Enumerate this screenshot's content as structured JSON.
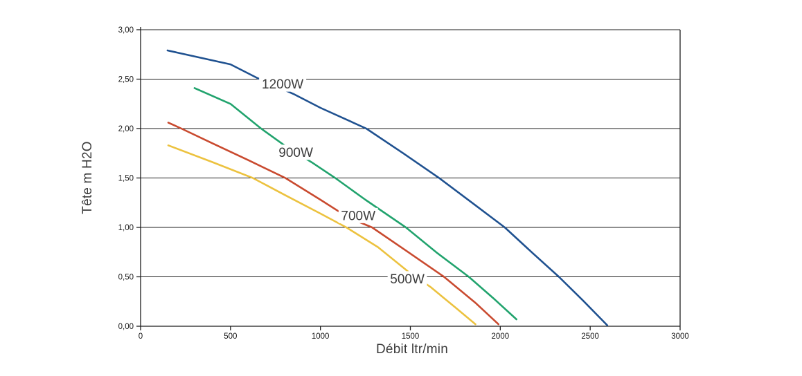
{
  "chart_data": {
    "type": "line",
    "title": "",
    "xlabel": "Débit ltr/min",
    "ylabel": "Tête m H2O",
    "xlim": [
      0,
      3000
    ],
    "ylim": [
      0,
      3
    ],
    "grid": "horizontal",
    "legend_position": "inline-labels",
    "axis_color": "#1c1c1c",
    "label_color": "#3c3c3c",
    "x_ticks": [
      {
        "value": 0,
        "label": "0"
      },
      {
        "value": 500,
        "label": "500"
      },
      {
        "value": 1000,
        "label": "1000"
      },
      {
        "value": 1500,
        "label": "1500"
      },
      {
        "value": 2000,
        "label": "2000"
      },
      {
        "value": 2500,
        "label": "2500"
      },
      {
        "value": 3000,
        "label": "3000"
      }
    ],
    "y_ticks": [
      {
        "value": 0.0,
        "label": "0,00"
      },
      {
        "value": 0.5,
        "label": "0,50"
      },
      {
        "value": 1.0,
        "label": "1,00"
      },
      {
        "value": 1.5,
        "label": "1,50"
      },
      {
        "value": 2.0,
        "label": "2,00"
      },
      {
        "value": 2.5,
        "label": "2,50"
      },
      {
        "value": 3.0,
        "label": "3,00"
      }
    ],
    "series": [
      {
        "name": "1200W",
        "color": "#1f5190",
        "label": {
          "text": "1200W",
          "x": 790,
          "y": 2.45
        },
        "points": [
          [
            150,
            2.79
          ],
          [
            300,
            2.73
          ],
          [
            500,
            2.65
          ],
          [
            651,
            2.51
          ],
          [
            850,
            2.35
          ],
          [
            1000,
            2.21
          ],
          [
            1255,
            2.0
          ],
          [
            1460,
            1.75
          ],
          [
            1660,
            1.5
          ],
          [
            1850,
            1.24
          ],
          [
            2025,
            1.0
          ],
          [
            2180,
            0.74
          ],
          [
            2326,
            0.5
          ],
          [
            2460,
            0.26
          ],
          [
            2595,
            0.01
          ]
        ]
      },
      {
        "name": "900W",
        "color": "#21a36d",
        "label": {
          "text": "900W",
          "x": 863,
          "y": 1.76
        },
        "points": [
          [
            300,
            2.41
          ],
          [
            500,
            2.25
          ],
          [
            670,
            2.0
          ],
          [
            800,
            1.83
          ],
          [
            950,
            1.66
          ],
          [
            1082,
            1.5
          ],
          [
            1250,
            1.28
          ],
          [
            1475,
            1.0
          ],
          [
            1650,
            0.74
          ],
          [
            1825,
            0.5
          ],
          [
            1970,
            0.27
          ],
          [
            2090,
            0.07
          ]
        ]
      },
      {
        "name": "700W",
        "color": "#c94a2f",
        "label": {
          "text": "700W",
          "x": 1210,
          "y": 1.12
        },
        "points": [
          [
            154,
            2.06
          ],
          [
            227,
            2.0
          ],
          [
            400,
            1.85
          ],
          [
            600,
            1.68
          ],
          [
            805,
            1.5
          ],
          [
            1000,
            1.28
          ],
          [
            1155,
            1.1
          ],
          [
            1287,
            1.0
          ],
          [
            1480,
            0.76
          ],
          [
            1687,
            0.5
          ],
          [
            1860,
            0.24
          ],
          [
            1990,
            0.02
          ]
        ]
      },
      {
        "name": "500W",
        "color": "#ecc23f",
        "label": {
          "text": "500W",
          "x": 1483,
          "y": 0.48
        },
        "points": [
          [
            154,
            1.83
          ],
          [
            400,
            1.66
          ],
          [
            624,
            1.5
          ],
          [
            800,
            1.33
          ],
          [
            1000,
            1.14
          ],
          [
            1144,
            1.0
          ],
          [
            1320,
            0.8
          ],
          [
            1510,
            0.52
          ],
          [
            1610,
            0.4
          ],
          [
            1750,
            0.19
          ],
          [
            1862,
            0.02
          ]
        ]
      }
    ]
  }
}
